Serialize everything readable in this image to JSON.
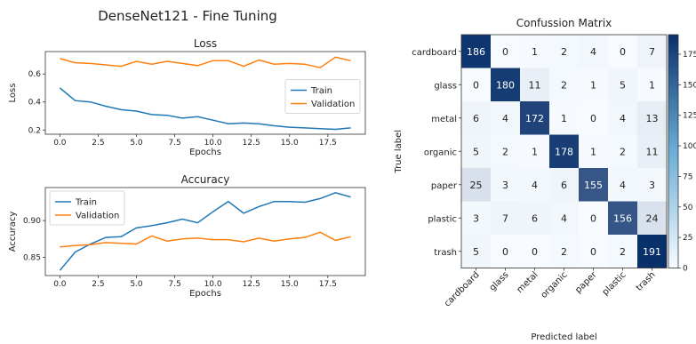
{
  "figure": {
    "suptitle": "DenseNet121 - Fine Tuning"
  },
  "colors": {
    "train": "#1f77b4",
    "validation": "#ff7f0e",
    "cm_low": "#f7fbff",
    "cm_high": "#08306b"
  },
  "chart_data": [
    {
      "id": "loss",
      "type": "line",
      "title": "Loss",
      "xlabel": "Epochs",
      "ylabel": "Loss",
      "xlim": [
        -0.95,
        19.95
      ],
      "ylim": [
        0.17,
        0.76
      ],
      "xticks": [
        0,
        2.5,
        5,
        7.5,
        10,
        12.5,
        15,
        17.5
      ],
      "xtick_labels": [
        "0.0",
        "2.5",
        "5.0",
        "7.5",
        "10.0",
        "12.5",
        "15.0",
        "17.5"
      ],
      "yticks": [
        0.2,
        0.4,
        0.6
      ],
      "ytick_labels": [
        "0.2",
        "0.4",
        "0.6"
      ],
      "legend": "center-right",
      "x": [
        0,
        1,
        2,
        3,
        4,
        5,
        6,
        7,
        8,
        9,
        10,
        11,
        12,
        13,
        14,
        15,
        16,
        17,
        18,
        19
      ],
      "series": [
        {
          "name": "Train",
          "color_key": "train",
          "values": [
            0.5,
            0.41,
            0.4,
            0.37,
            0.345,
            0.335,
            0.31,
            0.305,
            0.285,
            0.295,
            0.27,
            0.245,
            0.25,
            0.245,
            0.23,
            0.22,
            0.215,
            0.21,
            0.205,
            0.215
          ]
        },
        {
          "name": "Validation",
          "color_key": "validation",
          "values": [
            0.71,
            0.68,
            0.675,
            0.665,
            0.655,
            0.69,
            0.67,
            0.69,
            0.675,
            0.66,
            0.695,
            0.695,
            0.655,
            0.7,
            0.67,
            0.675,
            0.67,
            0.645,
            0.72,
            0.695
          ]
        }
      ]
    },
    {
      "id": "accuracy",
      "type": "line",
      "title": "Accuracy",
      "xlabel": "Epochs",
      "ylabel": "Accuracy",
      "xlim": [
        -0.95,
        19.95
      ],
      "ylim": [
        0.825,
        0.945
      ],
      "xticks": [
        0,
        2.5,
        5,
        7.5,
        10,
        12.5,
        15,
        17.5
      ],
      "xtick_labels": [
        "0.0",
        "2.5",
        "5.0",
        "7.5",
        "10.0",
        "12.5",
        "15.0",
        "17.5"
      ],
      "yticks": [
        0.85,
        0.9
      ],
      "ytick_labels": [
        "0.85",
        "0.90"
      ],
      "legend": "upper-left",
      "x": [
        0,
        1,
        2,
        3,
        4,
        5,
        6,
        7,
        8,
        9,
        10,
        11,
        12,
        13,
        14,
        15,
        16,
        17,
        18,
        19
      ],
      "series": [
        {
          "name": "Train",
          "color_key": "train",
          "values": [
            0.832,
            0.857,
            0.868,
            0.877,
            0.878,
            0.89,
            0.893,
            0.897,
            0.902,
            0.897,
            0.912,
            0.926,
            0.91,
            0.919,
            0.926,
            0.926,
            0.925,
            0.93,
            0.938,
            0.932
          ]
        },
        {
          "name": "Validation",
          "color_key": "validation",
          "values": [
            0.864,
            0.866,
            0.867,
            0.87,
            0.869,
            0.868,
            0.879,
            0.872,
            0.875,
            0.876,
            0.874,
            0.874,
            0.871,
            0.876,
            0.872,
            0.875,
            0.877,
            0.884,
            0.873,
            0.878
          ]
        }
      ]
    },
    {
      "id": "confusion",
      "type": "heatmap",
      "title": "Confussion Matrix",
      "xlabel": "Predicted label",
      "ylabel": "True label",
      "labels": [
        "cardboard",
        "glass",
        "metal",
        "organic",
        "paper",
        "plastic",
        "trash"
      ],
      "matrix": [
        [
          186,
          0,
          1,
          2,
          4,
          0,
          7
        ],
        [
          0,
          180,
          11,
          2,
          1,
          5,
          1
        ],
        [
          6,
          4,
          172,
          1,
          0,
          4,
          13
        ],
        [
          5,
          2,
          1,
          178,
          1,
          2,
          11
        ],
        [
          25,
          3,
          4,
          6,
          155,
          4,
          3
        ],
        [
          3,
          7,
          6,
          4,
          0,
          156,
          24
        ],
        [
          5,
          0,
          0,
          2,
          0,
          2,
          191
        ]
      ],
      "vmin": 0,
      "vmax": 191,
      "colorbar_ticks": [
        0,
        25,
        50,
        75,
        100,
        125,
        150,
        175
      ],
      "colorbar_labels": [
        "0",
        "25",
        "50",
        "75",
        "100",
        "125",
        "150",
        "175"
      ]
    }
  ]
}
